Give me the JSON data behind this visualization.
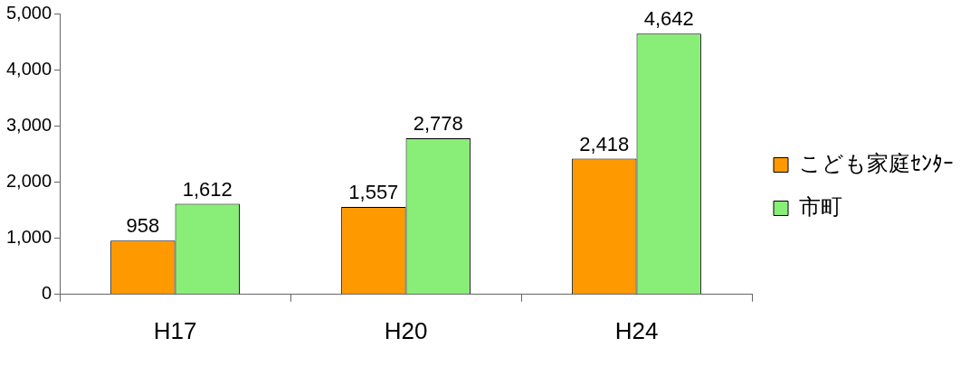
{
  "chart_data": {
    "type": "bar",
    "categories": [
      "H17",
      "H20",
      "H24"
    ],
    "series": [
      {
        "name": "こども家庭ｾﾝﾀｰ",
        "color": "#ff9900",
        "values": [
          958,
          1557,
          2418
        ],
        "value_labels": [
          "958",
          "1,557",
          "2,418"
        ]
      },
      {
        "name": "市町",
        "color": "#88ee77",
        "values": [
          1612,
          2778,
          4642
        ],
        "value_labels": [
          "1,612",
          "2,778",
          "4,642"
        ]
      }
    ],
    "ylim": [
      0,
      5000
    ],
    "yticks": [
      {
        "value": 0,
        "label": "0"
      },
      {
        "value": 1000,
        "label": "1,000"
      },
      {
        "value": 2000,
        "label": "2,000"
      },
      {
        "value": 3000,
        "label": "3,000"
      },
      {
        "value": 4000,
        "label": "4,000"
      },
      {
        "value": 5000,
        "label": "5,000"
      }
    ],
    "grid": false,
    "legend": "right"
  }
}
